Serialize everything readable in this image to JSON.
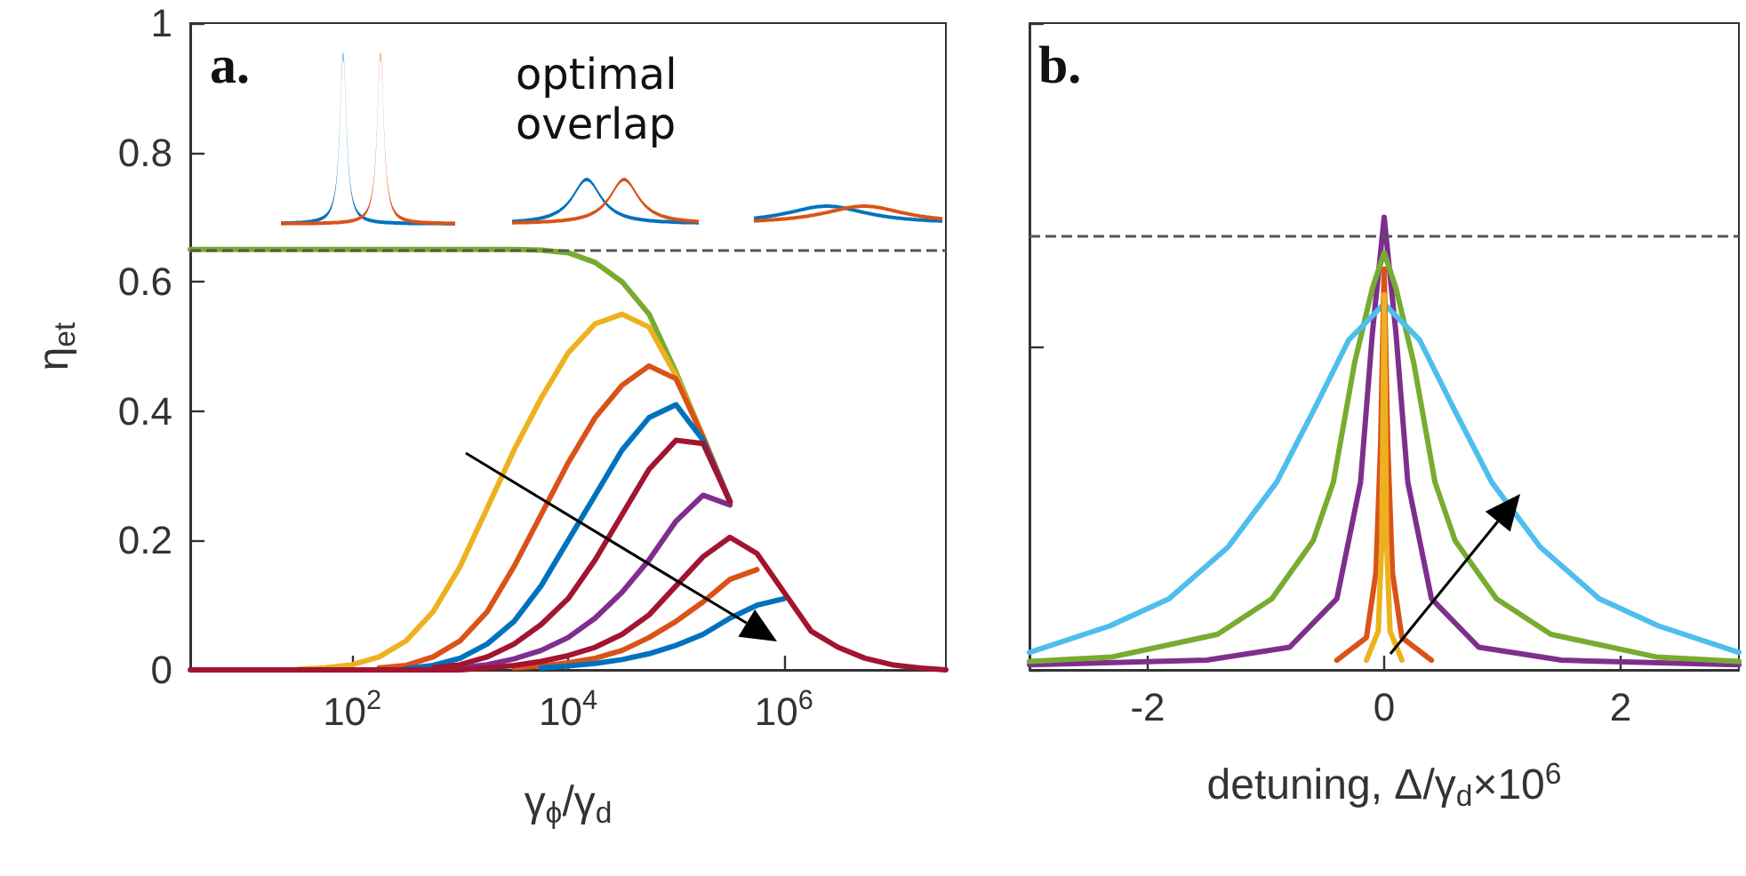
{
  "chart_data": [
    {
      "type": "line",
      "xlabel": "γ$_{ϕ}$/γ$_{d}$",
      "ylabel": "η$_{et}$",
      "annotations": [
        "a.",
        "optimal overlap"
      ],
      "log": "x",
      "marker": "none",
      "line_style": "solid",
      "x": [
        3.16,
        5.62,
        10,
        17.8,
        31.6,
        56.2,
        100,
        178,
        316,
        562,
        1000,
        1780,
        3160,
        5620,
        10000,
        17800,
        31600,
        56200,
        100000,
        178000,
        316000,
        562000,
        1000000,
        1780000,
        3160000,
        5620000,
        10000000,
        17800000,
        31600000
      ],
      "xlim": [
        3.16,
        31600000
      ],
      "xticks": [
        {
          "value": 100,
          "label": "10$^{2}$"
        },
        {
          "value": 10000,
          "label": "10$^{4}$"
        },
        {
          "value": 1000000,
          "label": "10$^{6}$"
        }
      ],
      "ylim": [
        0,
        1
      ],
      "yticks": [
        0,
        0.2,
        0.4,
        0.6,
        0.8,
        1
      ],
      "ref_lines": [
        {
          "axis": "y",
          "value": 0.65,
          "color": "#555555",
          "line_style": "dashed"
        }
      ],
      "series": [
        {
          "color": "#77ac30",
          "values": [
            0.65,
            0.65,
            0.65,
            0.65,
            0.65,
            0.65,
            0.65,
            0.65,
            0.65,
            0.65,
            0.65,
            0.65,
            0.65,
            0.649,
            0.645,
            0.63,
            0.6,
            0.55,
            0.46,
            0.36,
            0.26,
            null,
            null,
            null,
            null,
            null,
            null,
            null,
            null
          ]
        },
        {
          "color": "#edb120",
          "values": [
            null,
            null,
            null,
            null,
            0.001,
            0.003,
            0.008,
            0.02,
            0.045,
            0.09,
            0.16,
            0.25,
            0.34,
            0.42,
            0.49,
            0.535,
            0.55,
            0.53,
            0.455,
            0.36,
            0.26,
            null,
            null,
            null,
            null,
            null,
            null,
            null,
            null
          ]
        },
        {
          "color": "#d95319",
          "values": [
            null,
            null,
            null,
            null,
            null,
            null,
            null,
            0.003,
            0.007,
            0.02,
            0.045,
            0.09,
            0.16,
            0.24,
            0.32,
            0.39,
            0.44,
            0.47,
            0.45,
            0.36,
            0.26,
            null,
            null,
            null,
            null,
            null,
            null,
            null,
            null
          ]
        },
        {
          "color": "#0072bd",
          "values": [
            null,
            null,
            null,
            null,
            null,
            null,
            null,
            null,
            0.002,
            0.007,
            0.018,
            0.04,
            0.075,
            0.13,
            0.2,
            0.27,
            0.34,
            0.39,
            0.41,
            0.355,
            0.26,
            null,
            null,
            null,
            null,
            null,
            null,
            null,
            null
          ]
        },
        {
          "color": "#7e2f8e",
          "values": [
            null,
            null,
            null,
            null,
            null,
            null,
            null,
            null,
            null,
            null,
            0.003,
            0.008,
            0.017,
            0.03,
            0.05,
            0.08,
            0.12,
            0.17,
            0.23,
            0.27,
            0.255,
            null,
            null,
            null,
            null,
            null,
            null,
            null,
            null
          ]
        },
        {
          "color": "#d95319",
          "values": [
            null,
            null,
            null,
            null,
            null,
            null,
            null,
            null,
            null,
            null,
            null,
            null,
            0.003,
            0.006,
            0.011,
            0.018,
            0.03,
            0.05,
            0.075,
            0.105,
            0.14,
            0.155,
            null,
            null,
            null,
            null,
            null,
            null,
            null
          ]
        },
        {
          "color": "#0072bd",
          "values": [
            null,
            null,
            null,
            null,
            null,
            null,
            null,
            null,
            null,
            null,
            null,
            null,
            null,
            0.003,
            0.006,
            0.01,
            0.016,
            0.025,
            0.038,
            0.055,
            0.08,
            0.1,
            0.11,
            null,
            null,
            null,
            null,
            null,
            null
          ]
        },
        {
          "color": "#a2142f",
          "values": [
            null,
            null,
            null,
            null,
            null,
            null,
            null,
            null,
            null,
            0.003,
            0.008,
            0.02,
            0.04,
            0.07,
            0.11,
            0.17,
            0.24,
            0.31,
            0.355,
            0.35,
            0.26,
            null,
            null,
            null,
            null,
            null,
            null,
            null,
            null
          ]
        },
        {
          "color": "#a2142f",
          "values": [
            0,
            0,
            0,
            0,
            0,
            0,
            0,
            0,
            0,
            0,
            0,
            0.003,
            0.007,
            0.013,
            0.022,
            0.035,
            0.055,
            0.085,
            0.13,
            0.175,
            0.205,
            0.18,
            0.12,
            0.06,
            0.035,
            0.018,
            0.008,
            0.003,
            0
          ]
        }
      ]
    },
    {
      "type": "line",
      "xlabel": "detuning, Δ/γ$_{d}$×10$^{6}$",
      "annotations": [
        "b."
      ],
      "marker": "none",
      "line_style": "solid",
      "tick_labels": "x",
      "xlim": [
        -3,
        3
      ],
      "xticks": [
        -2,
        0,
        2
      ],
      "ylim": [
        0,
        1
      ],
      "yticks": [
        {
          "value": 0,
          "label": null
        },
        {
          "value": 0.5,
          "label": null
        },
        {
          "value": 1,
          "label": null
        }
      ],
      "ref_lines": [
        {
          "axis": "y",
          "value": 0.67,
          "color": "#555555",
          "line_style": "dashed"
        }
      ],
      "series": [
        {
          "color": "#7e2f8e",
          "x": [
            -3,
            -1.5,
            -0.8,
            -0.4,
            -0.2,
            -0.1,
            0,
            0.1,
            0.2,
            0.4,
            0.8,
            1.5,
            3
          ],
          "values": [
            0.008,
            0.015,
            0.035,
            0.11,
            0.29,
            0.52,
            0.7,
            0.52,
            0.29,
            0.11,
            0.035,
            0.015,
            0.008
          ]
        },
        {
          "color": "#77ac30",
          "x": [
            -3,
            -2.3,
            -1.41,
            -0.95,
            -0.6,
            -0.43,
            -0.25,
            -0.1,
            0,
            0.1,
            0.25,
            0.43,
            0.6,
            0.95,
            1.41,
            2.3,
            3
          ],
          "values": [
            0.013,
            0.02,
            0.055,
            0.11,
            0.2,
            0.29,
            0.475,
            0.59,
            0.645,
            0.59,
            0.475,
            0.29,
            0.2,
            0.11,
            0.055,
            0.02,
            0.013
          ]
        },
        {
          "color": "#4dbeee",
          "x": [
            -3,
            -2.32,
            -1.82,
            -1.32,
            -0.91,
            -0.6,
            -0.3,
            0,
            0.3,
            0.6,
            0.91,
            1.32,
            1.82,
            2.32,
            3
          ],
          "values": [
            0.027,
            0.068,
            0.11,
            0.19,
            0.29,
            0.4,
            0.51,
            0.566,
            0.51,
            0.4,
            0.29,
            0.19,
            0.11,
            0.068,
            0.027
          ]
        },
        {
          "color": "#d95319",
          "x": [
            -0.4,
            -0.15,
            -0.07,
            -0.03,
            0,
            0.03,
            0.07,
            0.15,
            0.4
          ],
          "values": [
            0.015,
            0.05,
            0.15,
            0.35,
            0.62,
            0.35,
            0.15,
            0.05,
            0.015
          ]
        },
        {
          "color": "#edb120",
          "x": [
            -0.15,
            -0.05,
            -0.02,
            0,
            0.02,
            0.05,
            0.15
          ],
          "values": [
            0.015,
            0.06,
            0.2,
            0.58,
            0.2,
            0.06,
            0.015
          ]
        }
      ]
    }
  ]
}
